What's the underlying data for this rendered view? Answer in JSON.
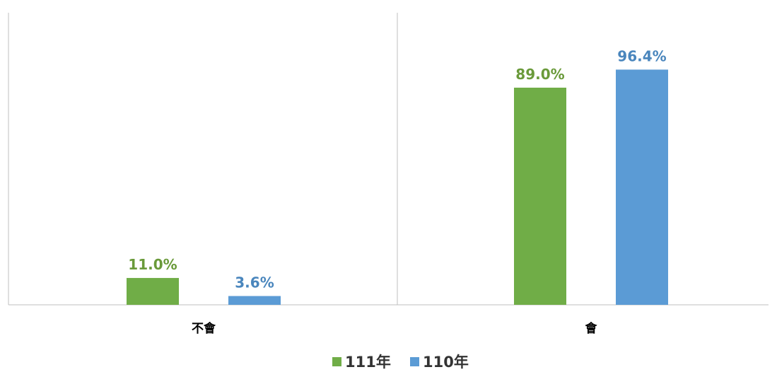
{
  "chart_data": {
    "type": "bar",
    "title": "",
    "xlabel": "",
    "ylabel": "",
    "categories": [
      "不會",
      "會"
    ],
    "series": [
      {
        "name": "111年",
        "color": "#70ad47",
        "label_color": "#6a9a3a",
        "values": [
          11.0,
          89.0
        ],
        "labels": [
          "11.0%",
          "89.0%"
        ]
      },
      {
        "name": "110年",
        "color": "#5b9bd5",
        "label_color": "#4a86bd",
        "values": [
          3.6,
          96.4
        ],
        "labels": [
          "3.6%",
          "96.4%"
        ]
      }
    ],
    "ylim": [
      0,
      100
    ],
    "grid": false,
    "legend_position": "bottom",
    "axis_color": "#bfbfbf"
  }
}
